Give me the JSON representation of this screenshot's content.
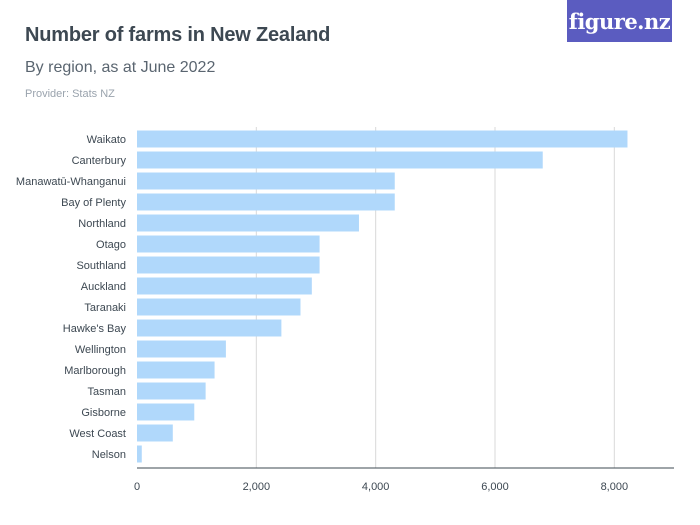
{
  "header": {
    "title": "Number of farms in New Zealand",
    "subtitle": "By region, as at June 2022",
    "provider": "Provider: Stats NZ"
  },
  "logo": {
    "text": "figure.nz",
    "background": "#5b5cc0"
  },
  "colors": {
    "bar": "#b0d8fb",
    "grid": "#d9d9d9",
    "axis": "#3d4852"
  },
  "chart_data": {
    "type": "bar",
    "orientation": "horizontal",
    "categories": [
      "Waikato",
      "Canterbury",
      "Manawatū-Whanganui",
      "Bay of Plenty",
      "Northland",
      "Otago",
      "Southland",
      "Auckland",
      "Taranaki",
      "Hawke's Bay",
      "Wellington",
      "Marlborough",
      "Tasman",
      "Gisborne",
      "West Coast",
      "Nelson"
    ],
    "values": [
      8220,
      6800,
      4320,
      4320,
      3720,
      3060,
      3060,
      2930,
      2740,
      2420,
      1490,
      1300,
      1150,
      960,
      600,
      80
    ],
    "xticks": [
      0,
      2000,
      4000,
      6000,
      8000
    ],
    "xtick_labels": [
      "0",
      "2,000",
      "4,000",
      "6,000",
      "8,000"
    ],
    "xlim": [
      0,
      9000
    ],
    "grid": true
  }
}
